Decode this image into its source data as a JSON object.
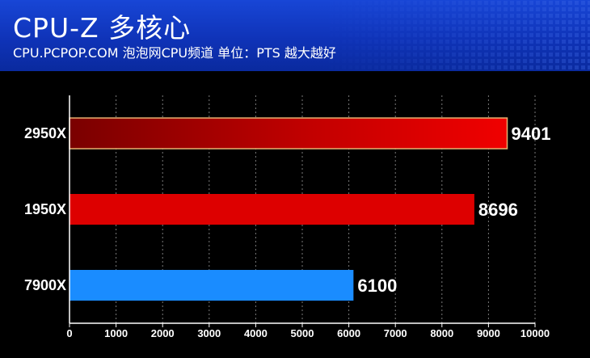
{
  "header": {
    "title": "CPU-Z 多核心",
    "subtitle": "CPU.PCPOP.COM 泡泡网CPU频道 单位：PTS 越大越好"
  },
  "chart_data": {
    "type": "bar",
    "orientation": "horizontal",
    "title": "CPU-Z 多核心",
    "subtitle": "CPU.PCPOP.COM 泡泡网CPU频道 单位：PTS 越大越好",
    "categories": [
      "2950X",
      "1950X",
      "7900X"
    ],
    "values": [
      9401,
      8696,
      6100
    ],
    "xlim": [
      0,
      10000
    ],
    "xticks": [
      0,
      1000,
      2000,
      3000,
      4000,
      5000,
      6000,
      7000,
      8000,
      9000,
      10000
    ],
    "grid": "vertical dotted",
    "colors": [
      "#e00000",
      "#dd0000",
      "#1a8cff"
    ],
    "highlight_color": "#8b0000"
  }
}
